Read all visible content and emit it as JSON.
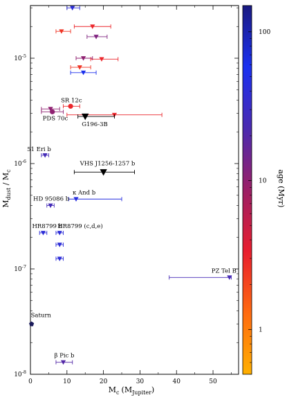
{
  "chart_data": {
    "type": "scatter",
    "xlabel_main": "M",
    "xlabel_sub": "c",
    "xlabel_unit_main": "(M",
    "xlabel_unit_sub": "Jupiter",
    "xlabel_unit_close": ")",
    "ylabel_main": "M",
    "ylabel_sub": "dust",
    "ylabel_rest": " / M",
    "ylabel_sub2": "c",
    "xlim": [
      0,
      57
    ],
    "ylim_log10": [
      -8,
      -4.5
    ],
    "x_ticks": [
      0,
      10,
      20,
      30,
      40,
      50
    ],
    "x_tick_labels": [
      "0",
      "10",
      "20",
      "30",
      "40",
      "50"
    ],
    "y_ticks_log10": [
      -8,
      -7,
      -6,
      -5
    ],
    "y_tick_labels": [
      {
        "base": "10",
        "exp": "-8"
      },
      {
        "base": "10",
        "exp": "-7"
      },
      {
        "base": "10",
        "exp": "-6"
      },
      {
        "base": "10",
        "exp": "-5"
      }
    ],
    "colorbar": {
      "label": "age (Myr)",
      "scale": "log",
      "range": [
        0.5,
        150
      ],
      "tick_values": [
        1,
        10,
        100
      ],
      "tick_labels": [
        "1",
        "10",
        "100"
      ],
      "colors": [
        "#ffb000",
        "#ff6a10",
        "#e81d2e",
        "#9b1f66",
        "#4a2ab0",
        "#1a30f0",
        "#1a1a80"
      ]
    },
    "points": [
      {
        "x": 11.5,
        "y": 3e-05,
        "xerr": [
          10.0,
          13.5
        ],
        "marker": "triangle-down",
        "age": 40
      },
      {
        "x": 17.0,
        "y": 2e-05,
        "xerr": [
          12.0,
          22.0
        ],
        "marker": "triangle-down",
        "age": 3
      },
      {
        "x": 8.5,
        "y": 1.8e-05,
        "xerr": [
          7.0,
          11.0
        ],
        "marker": "triangle-down",
        "age": 2.5
      },
      {
        "x": 18.0,
        "y": 1.6e-05,
        "xerr": [
          15.5,
          21.0
        ],
        "marker": "triangle-down",
        "age": 12
      },
      {
        "x": 14.5,
        "y": 1e-05,
        "xerr": [
          12.5,
          17.0
        ],
        "marker": "triangle-down",
        "age": 10
      },
      {
        "x": 19.5,
        "y": 9.8e-06,
        "xerr": [
          16.5,
          24.0
        ],
        "marker": "triangle-down",
        "age": 3
      },
      {
        "x": 13.5,
        "y": 8.2e-06,
        "xerr": [
          11.0,
          16.5
        ],
        "marker": "triangle-down",
        "age": 2.5
      },
      {
        "x": 14.5,
        "y": 7.3e-06,
        "xerr": [
          11.0,
          18.0
        ],
        "marker": "triangle-down",
        "age": 60
      },
      {
        "x": 11.0,
        "y": 3.5e-06,
        "xerr": [
          9.0,
          13.5
        ],
        "marker": "circle",
        "age": 3,
        "label": "SR 12c"
      },
      {
        "x": 6.0,
        "y": 3.1e-06,
        "xerr": [
          3.0,
          9.0
        ],
        "marker": "circle",
        "age": 10,
        "label": "PDS 70c"
      },
      {
        "x": 5.5,
        "y": 3.3e-06,
        "xerr": [
          3.0,
          8.0
        ],
        "marker": "triangle-down",
        "age": 10
      },
      {
        "x": 23.0,
        "y": 2.9e-06,
        "xerr": [
          10.0,
          36.0
        ],
        "marker": "triangle-down",
        "age": 3
      },
      {
        "x": 15.0,
        "y": 2.8e-06,
        "xerr": [
          13.0,
          23.0
        ],
        "marker": "triangle-down-black",
        "label": "G196-3B"
      },
      {
        "x": 4.0,
        "y": 1.2e-06,
        "xerr": [
          3.0,
          5.0
        ],
        "marker": "triangle-down",
        "age": 25,
        "label": "51 Eri b"
      },
      {
        "x": 20.0,
        "y": 8.3e-07,
        "xerr": [
          12.0,
          28.5
        ],
        "marker": "triangle-down-black",
        "label": "VHS J1256-1257 b"
      },
      {
        "x": 12.5,
        "y": 4.6e-07,
        "xerr": [
          10.5,
          25.0
        ],
        "marker": "triangle-down",
        "age": 45,
        "label": "κ And b"
      },
      {
        "x": 5.5,
        "y": 4e-07,
        "xerr": [
          4.5,
          6.5
        ],
        "marker": "triangle-down",
        "age": 25,
        "label": "HD 95086 b"
      },
      {
        "x": 3.5,
        "y": 2.2e-07,
        "xerr": [
          2.5,
          4.5
        ],
        "marker": "triangle-down",
        "age": 40,
        "label": "HR8799 b"
      },
      {
        "x": 8.0,
        "y": 2.2e-07,
        "xerr": [
          7.0,
          9.0
        ],
        "marker": "triangle-down",
        "age": 40,
        "label": "HR8799 (c,d,e)"
      },
      {
        "x": 8.0,
        "y": 1.7e-07,
        "xerr": [
          7.0,
          9.0
        ],
        "marker": "triangle-down",
        "age": 40
      },
      {
        "x": 8.0,
        "y": 1.25e-07,
        "xerr": [
          7.0,
          9.0
        ],
        "marker": "triangle-down",
        "age": 40
      },
      {
        "x": 54.5,
        "y": 8.3e-08,
        "xerr": [
          38.0,
          55.0
        ],
        "marker": "triangle-down",
        "age": 24,
        "label": "PZ Tel B"
      },
      {
        "x": 0.3,
        "y": 3e-08,
        "xerr": null,
        "marker": "pentagon",
        "color": "#1a1a5a",
        "label": "Saturn"
      },
      {
        "x": 9.0,
        "y": 1.3e-08,
        "xerr": [
          7.0,
          11.5
        ],
        "marker": "triangle-down",
        "age": 20,
        "label": "β Pic b"
      }
    ]
  }
}
